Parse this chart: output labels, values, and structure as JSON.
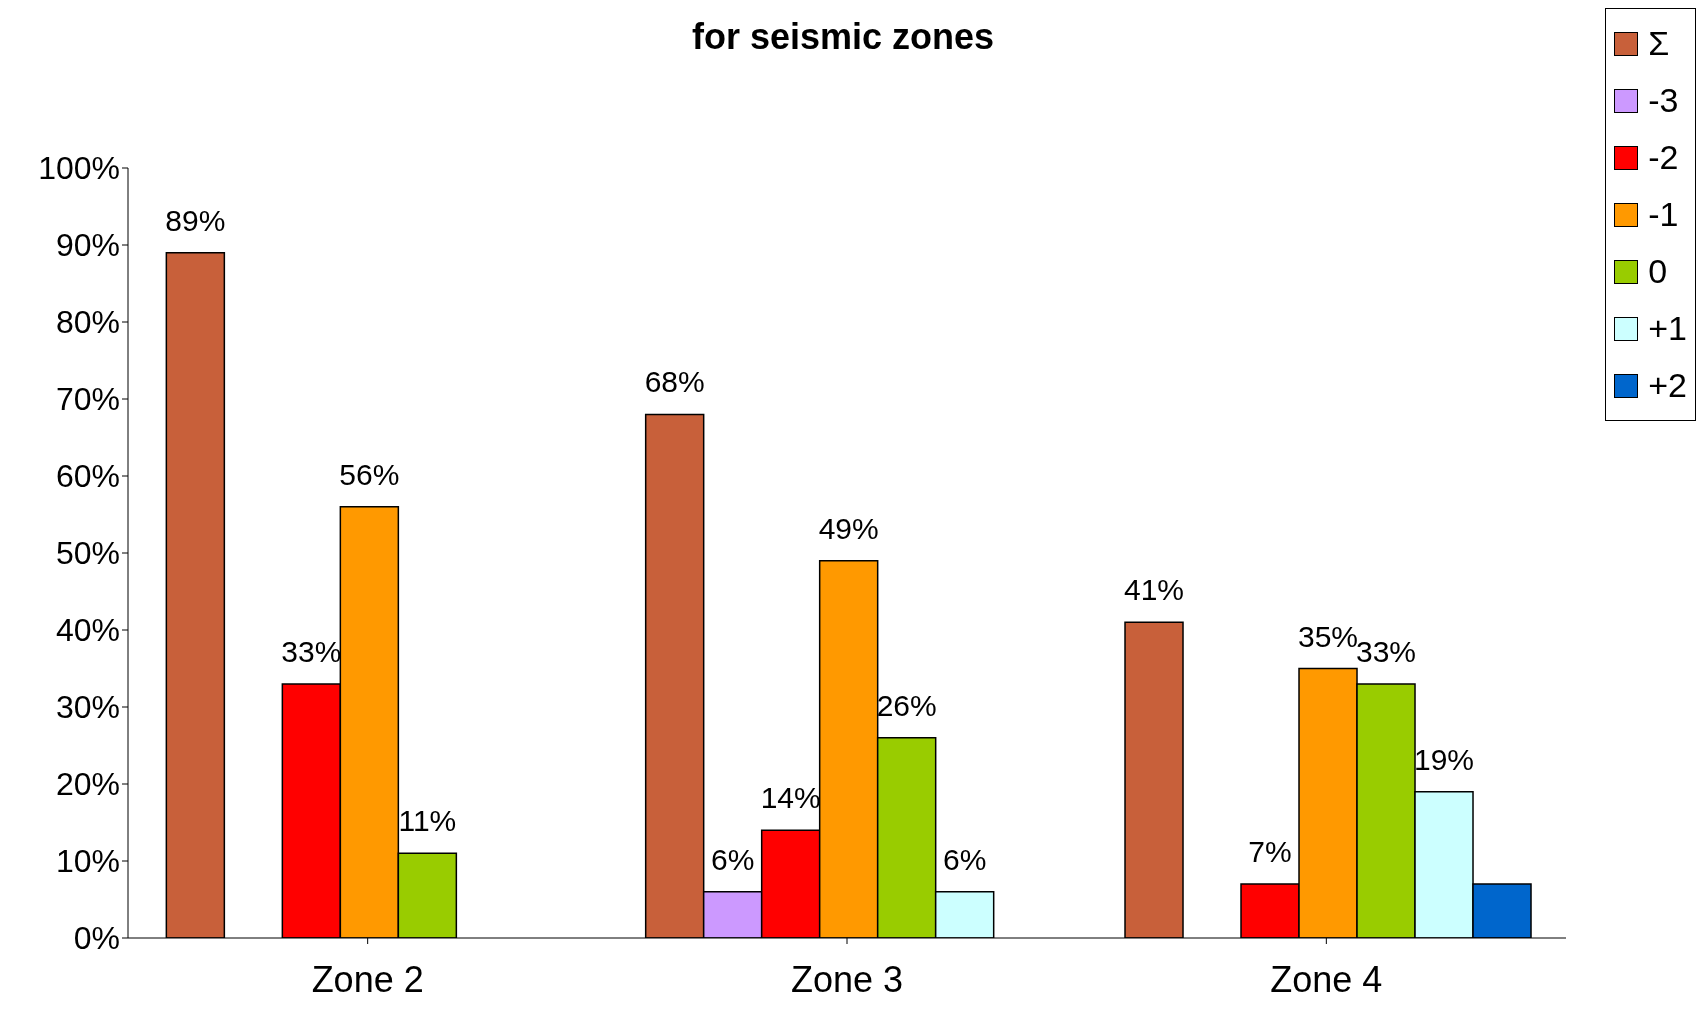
{
  "chart_data": {
    "type": "bar",
    "title": "for seismic zones",
    "categories": [
      "Zone 2",
      "Zone 3",
      "Zone 4"
    ],
    "series": [
      {
        "name": "Σ",
        "color": "#c8603a",
        "values": [
          89,
          68,
          41
        ],
        "value_labels": [
          "89%",
          "68%",
          "41%"
        ]
      },
      {
        "name": "-3",
        "color": "#cc99ff",
        "values": [
          null,
          6,
          null
        ],
        "value_labels": [
          null,
          "6%",
          null
        ]
      },
      {
        "name": "-2",
        "color": "#ff0000",
        "values": [
          33,
          14,
          7
        ],
        "value_labels": [
          "33%",
          "14%",
          "7%"
        ]
      },
      {
        "name": "-1",
        "color": "#ff9900",
        "values": [
          56,
          49,
          35
        ],
        "value_labels": [
          "56%",
          "49%",
          "35%"
        ]
      },
      {
        "name": "0",
        "color": "#99cc00",
        "values": [
          11,
          26,
          33
        ],
        "value_labels": [
          "11%",
          "26%",
          "33%"
        ]
      },
      {
        "name": "+1",
        "color": "#ccffff",
        "values": [
          null,
          6,
          19
        ],
        "value_labels": [
          null,
          "6%",
          "19%"
        ]
      },
      {
        "name": "+2",
        "color": "#0066cc",
        "values": [
          null,
          null,
          7
        ],
        "value_labels": [
          null,
          null,
          null
        ]
      }
    ],
    "ylim": [
      0,
      100
    ],
    "yticks": [
      {
        "value": 0,
        "label": "0%"
      },
      {
        "value": 10,
        "label": "10%"
      },
      {
        "value": 20,
        "label": "20%"
      },
      {
        "value": 30,
        "label": "30%"
      },
      {
        "value": 40,
        "label": "40%"
      },
      {
        "value": 50,
        "label": "50%"
      },
      {
        "value": 60,
        "label": "60%"
      },
      {
        "value": 70,
        "label": "70%"
      },
      {
        "value": 80,
        "label": "80%"
      },
      {
        "value": 90,
        "label": "90%"
      },
      {
        "value": 100,
        "label": "100%"
      }
    ],
    "grid": false,
    "legend": "top right"
  }
}
